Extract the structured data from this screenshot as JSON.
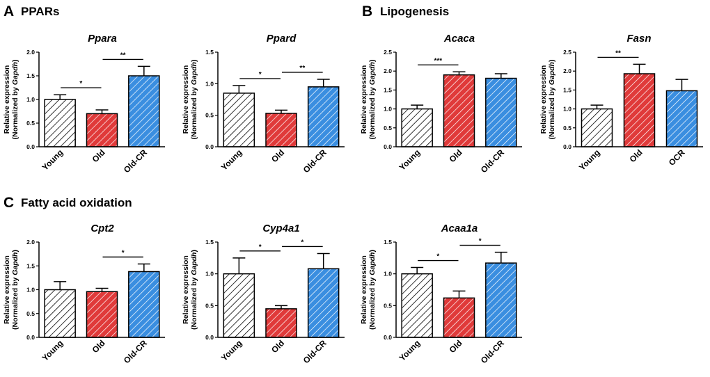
{
  "panels": [
    {
      "letter": "A",
      "title": "PPARs"
    },
    {
      "letter": "B",
      "title": "Lipogenesis"
    },
    {
      "letter": "C",
      "title": "Fatty acid oxidation"
    }
  ],
  "colors": {
    "young": "#000000",
    "old": "#e03a3a",
    "old_cr": "#3a8ee0",
    "axis": "#000000"
  },
  "y_label": {
    "line1": "Relative expression",
    "line2_prefix": "(Normalized by ",
    "line2_gene": "Gapdh",
    "line2_suffix": ")"
  },
  "chart_data": [
    {
      "type": "bar",
      "panel": "A",
      "title": "Ppara",
      "categories": [
        "Young",
        "Old",
        "Old-CR"
      ],
      "values": [
        1.0,
        0.7,
        1.5
      ],
      "errors": [
        0.1,
        0.08,
        0.2
      ],
      "ylim": [
        0,
        2.0
      ],
      "yticks": [
        "0.0",
        "0.5",
        "1.0",
        "1.5",
        "2.0"
      ],
      "significance": [
        {
          "from": 0,
          "to": 1,
          "label": "*"
        },
        {
          "from": 1,
          "to": 2,
          "label": "**"
        }
      ]
    },
    {
      "type": "bar",
      "panel": "A",
      "title": "Ppard",
      "categories": [
        "Young",
        "Old",
        "Old-CR"
      ],
      "values": [
        0.85,
        0.53,
        0.95
      ],
      "errors": [
        0.12,
        0.05,
        0.12
      ],
      "ylim": [
        0,
        1.5
      ],
      "yticks": [
        "0.0",
        "0.5",
        "1.0",
        "1.5"
      ],
      "significance": [
        {
          "from": 0,
          "to": 1,
          "label": "*"
        },
        {
          "from": 1,
          "to": 2,
          "label": "**"
        }
      ]
    },
    {
      "type": "bar",
      "panel": "B",
      "title": "Acaca",
      "categories": [
        "Young",
        "Old",
        "Old-CR"
      ],
      "values": [
        1.0,
        1.9,
        1.81
      ],
      "errors": [
        0.1,
        0.08,
        0.12
      ],
      "ylim": [
        0,
        2.5
      ],
      "yticks": [
        "0.0",
        "0.5",
        "1.0",
        "1.5",
        "2.0",
        "2.5"
      ],
      "significance": [
        {
          "from": 0,
          "to": 1,
          "label": "***"
        }
      ]
    },
    {
      "type": "bar",
      "panel": "B",
      "title": "Fasn",
      "categories": [
        "Young",
        "Old",
        "OCR"
      ],
      "values": [
        1.0,
        1.93,
        1.48
      ],
      "errors": [
        0.1,
        0.25,
        0.3
      ],
      "ylim": [
        0,
        2.5
      ],
      "yticks": [
        "0.0",
        "0.5",
        "1.0",
        "1.5",
        "2.0",
        "2.5"
      ],
      "significance": [
        {
          "from": 0,
          "to": 1,
          "label": "**"
        }
      ]
    },
    {
      "type": "bar",
      "panel": "C",
      "title": "Cpt2",
      "categories": [
        "Young",
        "Old",
        "Old-CR"
      ],
      "values": [
        1.0,
        0.96,
        1.38
      ],
      "errors": [
        0.17,
        0.07,
        0.16
      ],
      "ylim": [
        0,
        2.0
      ],
      "yticks": [
        "0.0",
        "0.5",
        "1.0",
        "1.5",
        "2.0"
      ],
      "significance": [
        {
          "from": 1,
          "to": 2,
          "label": "*"
        }
      ]
    },
    {
      "type": "bar",
      "panel": "C",
      "title": "Cyp4a1",
      "categories": [
        "Young",
        "Old",
        "Old-CR"
      ],
      "values": [
        1.0,
        0.45,
        1.08
      ],
      "errors": [
        0.25,
        0.05,
        0.24
      ],
      "ylim": [
        0,
        1.5
      ],
      "yticks": [
        "0.0",
        "0.5",
        "1.0",
        "1.5"
      ],
      "significance": [
        {
          "from": 0,
          "to": 1,
          "label": "*"
        },
        {
          "from": 1,
          "to": 2,
          "label": "*"
        }
      ]
    },
    {
      "type": "bar",
      "panel": "C",
      "title": "Acaa1a",
      "categories": [
        "Young",
        "Old",
        "Old-CR"
      ],
      "values": [
        1.0,
        0.62,
        1.17
      ],
      "errors": [
        0.1,
        0.11,
        0.17
      ],
      "ylim": [
        0,
        1.5
      ],
      "yticks": [
        "0.0",
        "0.5",
        "1.0",
        "1.5"
      ],
      "significance": [
        {
          "from": 0,
          "to": 1,
          "label": "*"
        },
        {
          "from": 1,
          "to": 2,
          "label": "*"
        }
      ]
    }
  ]
}
